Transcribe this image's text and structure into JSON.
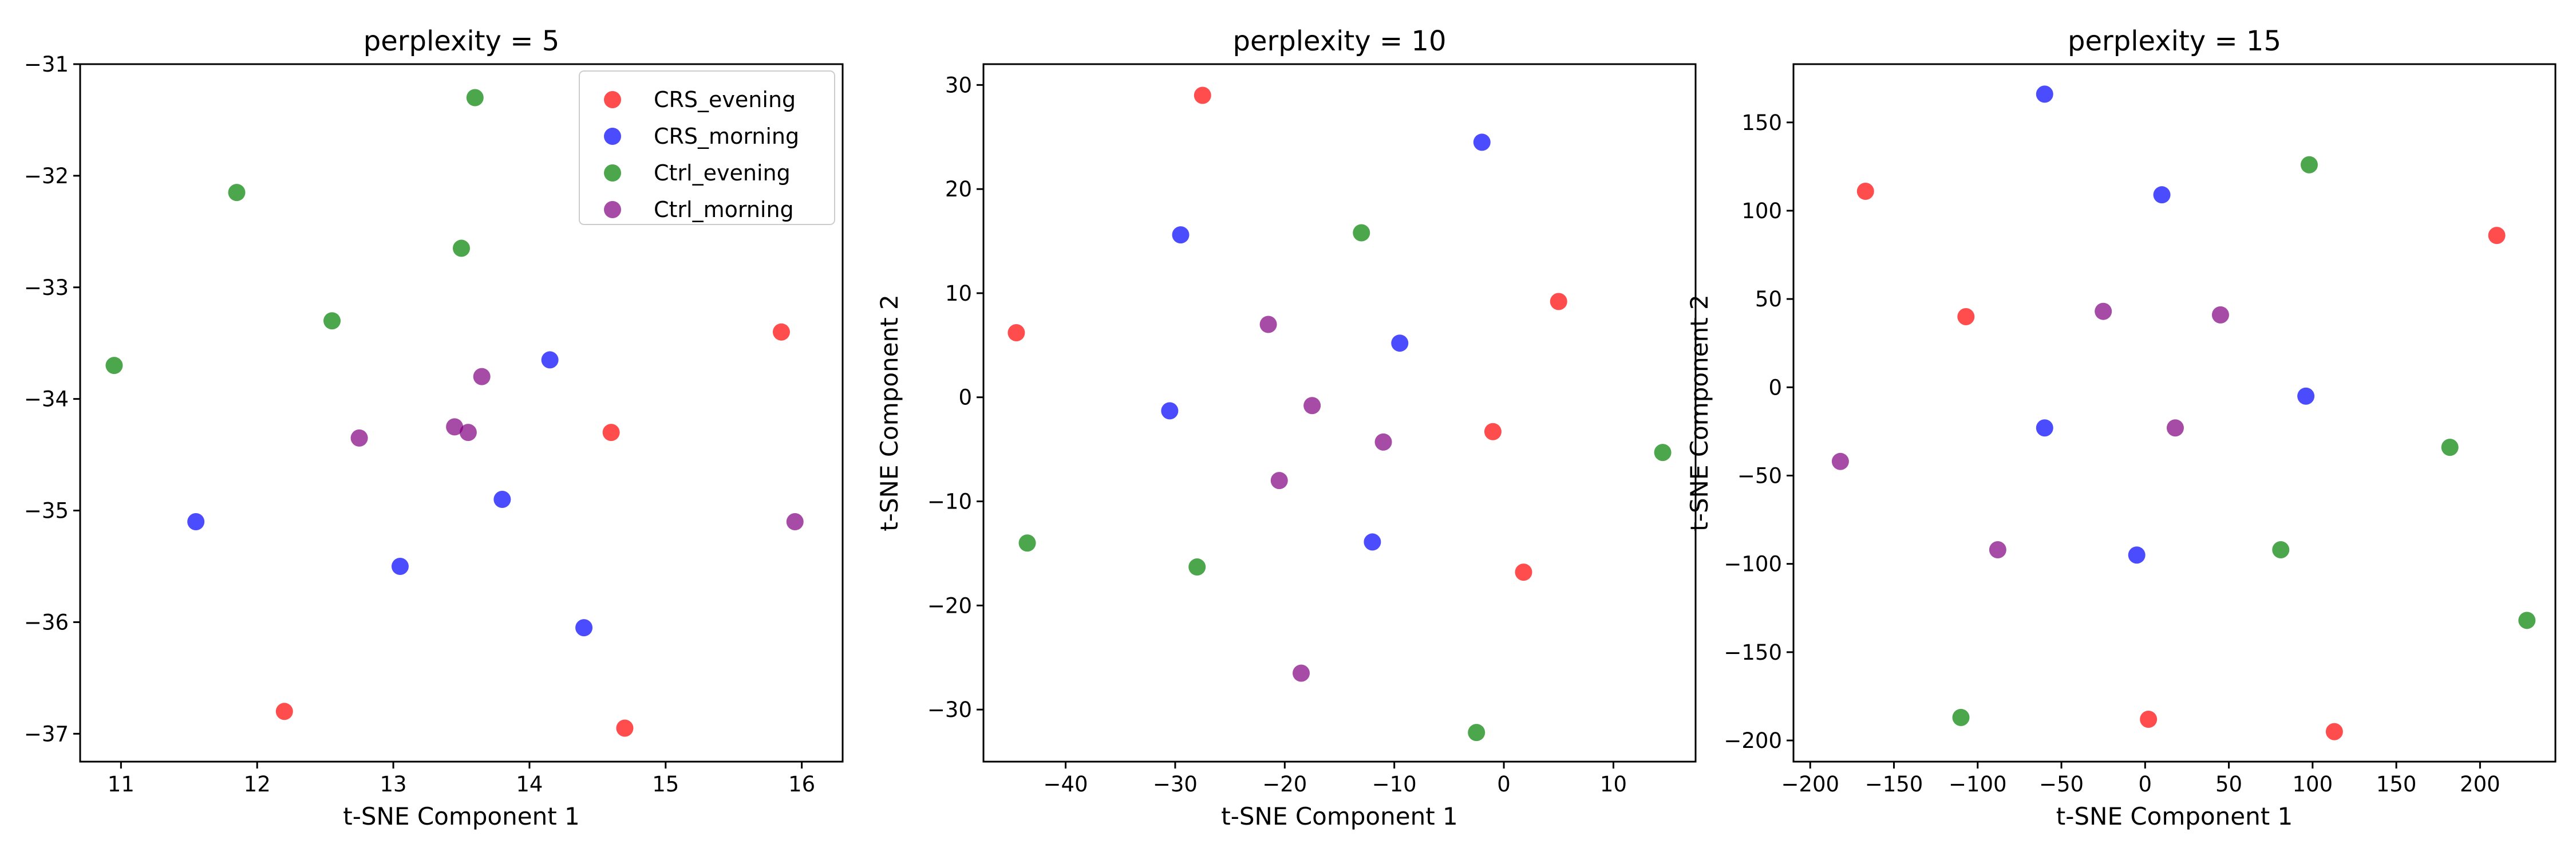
{
  "chart_data": [
    {
      "type": "scatter",
      "title": "perplexity = 5",
      "xlabel": "t-SNE Component 1",
      "ylabel": "t-SNE Component 2",
      "xlim": [
        10.7,
        16.3
      ],
      "ylim": [
        -37.25,
        -31.0
      ],
      "xticks": [
        11,
        12,
        13,
        14,
        15,
        16
      ],
      "yticks": [
        -37,
        -36,
        -35,
        -34,
        -33,
        -32,
        -31
      ],
      "legend": "top-right",
      "series": [
        {
          "name": "CRS_evening",
          "color": "#ff0000",
          "points": [
            [
              12.2,
              -36.8
            ],
            [
              14.6,
              -34.3
            ],
            [
              14.7,
              -36.95
            ],
            [
              15.85,
              -33.4
            ]
          ]
        },
        {
          "name": "CRS_morning",
          "color": "#0000ff",
          "points": [
            [
              11.55,
              -35.1
            ],
            [
              13.05,
              -35.5
            ],
            [
              13.8,
              -34.9
            ],
            [
              14.15,
              -33.65
            ],
            [
              14.4,
              -36.05
            ]
          ]
        },
        {
          "name": "Ctrl_evening",
          "color": "#008000",
          "points": [
            [
              10.95,
              -33.7
            ],
            [
              11.85,
              -32.15
            ],
            [
              12.55,
              -33.3
            ],
            [
              13.5,
              -32.65
            ],
            [
              13.6,
              -31.3
            ]
          ]
        },
        {
          "name": "Ctrl_morning",
          "color": "#800080",
          "points": [
            [
              12.75,
              -34.35
            ],
            [
              13.45,
              -34.25
            ],
            [
              13.55,
              -34.3
            ],
            [
              13.65,
              -33.8
            ],
            [
              15.95,
              -35.1
            ]
          ]
        }
      ]
    },
    {
      "type": "scatter",
      "title": "perplexity = 10",
      "xlabel": "t-SNE Component 1",
      "ylabel": "t-SNE Component 2",
      "xlim": [
        -47.5,
        17.5
      ],
      "ylim": [
        -35,
        32
      ],
      "xticks": [
        -40,
        -30,
        -20,
        -10,
        0,
        10
      ],
      "yticks": [
        -30,
        -20,
        -10,
        0,
        10,
        20,
        30
      ],
      "series": [
        {
          "name": "CRS_evening",
          "color": "#ff0000",
          "points": [
            [
              -44.5,
              6.2
            ],
            [
              -27.5,
              29
            ],
            [
              5,
              9.2
            ],
            [
              -1,
              -3.3
            ],
            [
              1.8,
              -16.8
            ]
          ]
        },
        {
          "name": "CRS_morning",
          "color": "#0000ff",
          "points": [
            [
              -29.5,
              15.6
            ],
            [
              -30.5,
              -1.3
            ],
            [
              -2,
              24.5
            ],
            [
              -9.5,
              5.2
            ],
            [
              -12,
              -13.9
            ]
          ]
        },
        {
          "name": "Ctrl_evening",
          "color": "#008000",
          "points": [
            [
              -43.5,
              -14
            ],
            [
              -28,
              -16.3
            ],
            [
              -13,
              15.8
            ],
            [
              14.5,
              -5.3
            ],
            [
              -2.5,
              -32.2
            ]
          ]
        },
        {
          "name": "Ctrl_morning",
          "color": "#800080",
          "points": [
            [
              -21.5,
              7
            ],
            [
              -17.5,
              -0.8
            ],
            [
              -20.5,
              -8
            ],
            [
              -11,
              -4.3
            ],
            [
              -18.5,
              -26.5
            ]
          ]
        }
      ]
    },
    {
      "type": "scatter",
      "title": "perplexity = 15",
      "xlabel": "t-SNE Component 1",
      "ylabel": "t-SNE Component 2",
      "xlim": [
        -210,
        245
      ],
      "ylim": [
        -212,
        183
      ],
      "xticks": [
        -200,
        -150,
        -100,
        -50,
        0,
        50,
        100,
        150,
        200
      ],
      "yticks": [
        -200,
        -150,
        -100,
        -50,
        0,
        50,
        100,
        150
      ],
      "series": [
        {
          "name": "CRS_evening",
          "color": "#ff0000",
          "points": [
            [
              -167,
              111
            ],
            [
              -107,
              40
            ],
            [
              210,
              86
            ],
            [
              2,
              -188
            ],
            [
              113,
              -195
            ]
          ]
        },
        {
          "name": "CRS_morning",
          "color": "#0000ff",
          "points": [
            [
              -60,
              166
            ],
            [
              10,
              109
            ],
            [
              -60,
              -23
            ],
            [
              96,
              -5
            ],
            [
              -5,
              -95
            ]
          ]
        },
        {
          "name": "Ctrl_evening",
          "color": "#008000",
          "points": [
            [
              98,
              126
            ],
            [
              182,
              -34
            ],
            [
              81,
              -92
            ],
            [
              -110,
              -187
            ],
            [
              228,
              -132
            ]
          ]
        },
        {
          "name": "Ctrl_morning",
          "color": "#800080",
          "points": [
            [
              -182,
              -42
            ],
            [
              -25,
              43
            ],
            [
              45,
              41
            ],
            [
              18,
              -23
            ],
            [
              -88,
              -92
            ]
          ]
        }
      ]
    }
  ]
}
